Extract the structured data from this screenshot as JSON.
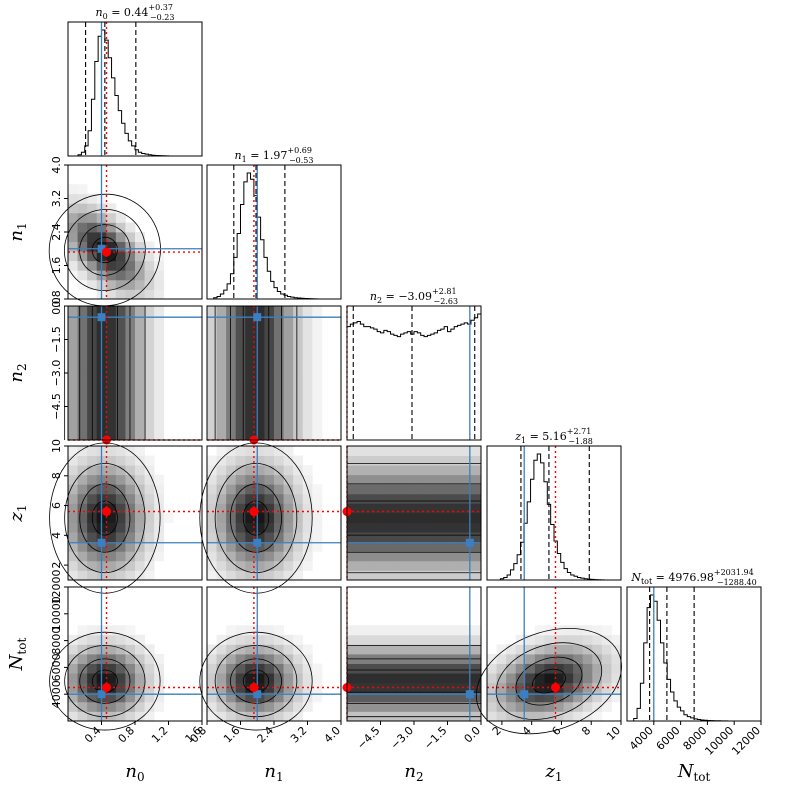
{
  "chart_data": {
    "type": "corner",
    "parameters": [
      {
        "symbol": "n_0",
        "label": "n",
        "sub": "0",
        "title": "n_0 = 0.44^{+0.37}_{-0.23}",
        "title_parts": {
          "name": "n",
          "sub": "0",
          "eq": " = 0.44",
          "plus": "+0.37",
          "minus": "−0.23"
        },
        "range": [
          0,
          1.6
        ],
        "ticks": [
          "0.4",
          "0.8",
          "1.2",
          "1.6"
        ],
        "tick_values": [
          0.4,
          0.8,
          1.2,
          1.6
        ],
        "median": 0.44,
        "q16": 0.21,
        "q84": 0.81,
        "truth": 0.4,
        "best_fit": 0.46,
        "hist": [
          0,
          0,
          0,
          0.01,
          0.03,
          0.08,
          0.2,
          0.45,
          0.75,
          0.95,
          1.0,
          0.92,
          0.78,
          0.62,
          0.48,
          0.36,
          0.26,
          0.18,
          0.12,
          0.08,
          0.05,
          0.03,
          0.02,
          0.015,
          0.01,
          0.006,
          0.004,
          0.003,
          0.002,
          0.001,
          0,
          0,
          0,
          0,
          0,
          0,
          0,
          0,
          0,
          0
        ]
      },
      {
        "symbol": "n_1",
        "label": "n",
        "sub": "1",
        "title": "n_1 = 1.97^{+0.69}_{-0.53}",
        "title_parts": {
          "name": "n",
          "sub": "1",
          "eq": " = 1.97",
          "plus": "+0.69",
          "minus": "−0.53"
        },
        "range": [
          0.8,
          4.0
        ],
        "ticks": [
          "0.8",
          "1.6",
          "2.4",
          "3.2",
          "4.0"
        ],
        "tick_values": [
          0.8,
          1.6,
          2.4,
          3.2,
          4.0
        ],
        "median": 1.97,
        "q16": 1.44,
        "q84": 2.66,
        "truth": 2.0,
        "best_fit": 1.92,
        "hist": [
          0,
          0,
          0.01,
          0.02,
          0.04,
          0.07,
          0.12,
          0.2,
          0.33,
          0.52,
          0.75,
          0.93,
          1.0,
          0.95,
          0.82,
          0.65,
          0.47,
          0.33,
          0.22,
          0.14,
          0.09,
          0.06,
          0.04,
          0.03,
          0.02,
          0.015,
          0.01,
          0.008,
          0.006,
          0.004,
          0.003,
          0.002,
          0.001,
          0,
          0,
          0,
          0,
          0,
          0,
          0
        ]
      },
      {
        "symbol": "n_2",
        "label": "n",
        "sub": "2",
        "title": "n_2 = −3.09^{+2.81}_{-2.63}",
        "title_parts": {
          "name": "n",
          "sub": "2",
          "eq": " = −3.09",
          "plus": "+2.81",
          "minus": "−2.63"
        },
        "range": [
          -6.0,
          0.0
        ],
        "ticks": [
          "−4.5",
          "−3.0",
          "−1.5",
          "0.0"
        ],
        "tick_values": [
          -4.5,
          -3.0,
          -1.5,
          0.0
        ],
        "median": -3.09,
        "q16": -5.72,
        "q84": -0.28,
        "truth": -0.5,
        "best_fit": -6.0,
        "hist": [
          0.9,
          0.92,
          0.93,
          0.94,
          0.92,
          0.9,
          0.9,
          0.89,
          0.88,
          0.86,
          0.85,
          0.87,
          0.86,
          0.84,
          0.83,
          0.82,
          0.84,
          0.85,
          0.86,
          0.84,
          0.86,
          0.85,
          0.83,
          0.82,
          0.83,
          0.84,
          0.85,
          0.87,
          0.88,
          0.9,
          0.86,
          0.88,
          0.9,
          0.91,
          0.92,
          0.93,
          0.92,
          0.95,
          0.97,
          1.0
        ]
      },
      {
        "symbol": "z_1",
        "label": "z",
        "sub": "1",
        "title": "z_1 = 5.16^{+2.71}_{-1.88}",
        "title_parts": {
          "name": "z",
          "sub": "1",
          "eq": " = 5.16",
          "plus": "+2.71",
          "minus": "−1.88"
        },
        "range": [
          1,
          10
        ],
        "ticks": [
          "2",
          "4",
          "6",
          "8",
          "10"
        ],
        "tick_values": [
          2,
          4,
          6,
          8,
          10
        ],
        "y_ticks": [
          "2",
          "4",
          "6",
          "8",
          "10"
        ],
        "median": 5.16,
        "q16": 3.28,
        "q84": 7.87,
        "truth": 3.5,
        "best_fit": 5.6,
        "hist": [
          0,
          0,
          0,
          0,
          0.01,
          0.02,
          0.04,
          0.08,
          0.13,
          0.2,
          0.3,
          0.45,
          0.62,
          0.8,
          0.95,
          1.0,
          0.93,
          0.78,
          0.6,
          0.44,
          0.31,
          0.21,
          0.14,
          0.09,
          0.06,
          0.04,
          0.03,
          0.02,
          0.015,
          0.01,
          0.007,
          0.005,
          0.003,
          0.002,
          0.001,
          0,
          0,
          0,
          0,
          0
        ]
      },
      {
        "symbol": "N_tot",
        "label": "N",
        "sub": "tot",
        "title": "N_tot = 4976.98^{+2031.94}_{-1288.40}",
        "title_parts": {
          "name": "N",
          "sub": "tot",
          "eq": " = 4976.98",
          "plus": "+2031.94",
          "minus": "−1288.40"
        },
        "range": [
          2000,
          12000
        ],
        "ticks": [
          "4000",
          "6000",
          "8000",
          "10000",
          "12000"
        ],
        "tick_values": [
          4000,
          6000,
          8000,
          10000,
          12000
        ],
        "y_ticks": [
          "4000",
          "6000",
          "8000",
          "10000",
          "12000"
        ],
        "median": 4976.98,
        "q16": 3688.58,
        "q84": 7008.92,
        "truth": 4000,
        "best_fit": 4500,
        "hist": [
          0,
          0,
          0.02,
          0.1,
          0.3,
          0.62,
          0.9,
          1.0,
          0.95,
          0.8,
          0.62,
          0.46,
          0.33,
          0.23,
          0.16,
          0.11,
          0.08,
          0.05,
          0.035,
          0.025,
          0.017,
          0.012,
          0.008,
          0.006,
          0.004,
          0.003,
          0.002,
          0.0015,
          0.001,
          0.0008,
          0.0005,
          0.0003,
          0.0002,
          0.0001,
          0,
          0,
          0,
          0,
          0,
          0
        ]
      }
    ],
    "marker_colors": {
      "truth": "#3a7fc1",
      "best_fit": "#ff0000",
      "quantile_line": "#000000"
    },
    "series": [
      {
        "name": "truth",
        "marker": "square",
        "color": "#3a7fc1"
      },
      {
        "name": "best_fit",
        "marker": "circle",
        "color": "#ff0000"
      }
    ]
  }
}
